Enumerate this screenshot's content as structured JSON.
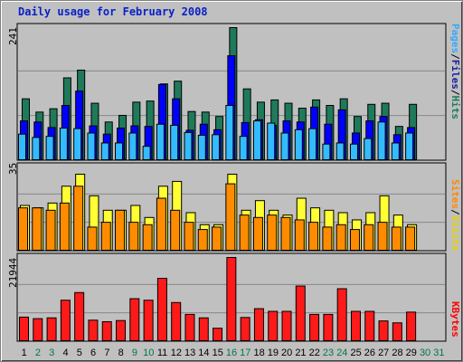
{
  "title": "Daily usage for February 2008",
  "panels": {
    "top": {
      "max_label": "241",
      "legend": [
        {
          "text": "Pages",
          "color": "#33aaff"
        },
        {
          "text": "Files",
          "color": "#1a1aa0"
        },
        {
          "text": "Hits",
          "color": "#1f7a5a"
        }
      ]
    },
    "mid": {
      "max_label": "35",
      "legend": [
        {
          "text": "Sites",
          "color": "#ff8800"
        },
        {
          "text": "Visits",
          "color": "#e8d000"
        }
      ]
    },
    "bot": {
      "max_label": "21944",
      "legend": [
        {
          "text": "KBytes",
          "color": "#ff0000"
        }
      ]
    }
  },
  "colors": {
    "hits": "#1f7a5a",
    "files": "#0000ff",
    "pages": "#33bbff",
    "visits": "#ffff33",
    "sites": "#ff8c00",
    "kbytes": "#ff1a1a",
    "weekday": "#000000",
    "weekend": "#007744"
  },
  "chart_data": {
    "type": "bar",
    "x": [
      "1",
      "2",
      "3",
      "4",
      "5",
      "6",
      "7",
      "8",
      "9",
      "10",
      "11",
      "12",
      "13",
      "14",
      "15",
      "16",
      "17",
      "18",
      "19",
      "20",
      "21",
      "22",
      "23",
      "24",
      "25",
      "26",
      "27",
      "28",
      "29",
      "30",
      "31"
    ],
    "weekend_days": [
      "2",
      "3",
      "9",
      "10",
      "16",
      "17",
      "23",
      "24",
      "30",
      "31"
    ],
    "ylim_top": [
      0,
      241
    ],
    "ylim_mid": [
      0,
      35
    ],
    "ylim_bot": [
      0,
      21944
    ],
    "series": [
      {
        "name": "Hits",
        "panel": "top",
        "values": [
          112,
          88,
          94,
          150,
          164,
          104,
          70,
          82,
          106,
          108,
          139,
          144,
          89,
          88,
          80,
          241,
          130,
          106,
          110,
          104,
          95,
          110,
          100,
          112,
          80,
          102,
          104,
          62,
          102,
          null,
          null
        ]
      },
      {
        "name": "Files",
        "panel": "top",
        "values": [
          72,
          70,
          60,
          100,
          126,
          63,
          48,
          59,
          63,
          62,
          138,
          112,
          55,
          66,
          56,
          190,
          69,
          74,
          64,
          72,
          70,
          97,
          66,
          92,
          50,
          72,
          80,
          47,
          60,
          null,
          null
        ]
      },
      {
        "name": "Pages",
        "panel": "top",
        "values": [
          48,
          42,
          44,
          59,
          58,
          50,
          32,
          32,
          50,
          26,
          66,
          64,
          51,
          46,
          47,
          100,
          44,
          72,
          68,
          50,
          56,
          58,
          30,
          32,
          30,
          40,
          70,
          32,
          50,
          null,
          null
        ]
      },
      {
        "name": "Visits",
        "panel": "mid",
        "values": [
          19,
          18,
          20,
          27,
          32,
          23,
          17,
          17,
          19,
          14,
          27,
          29,
          16,
          11,
          11,
          32,
          17,
          21,
          17,
          15,
          22,
          18,
          17,
          16,
          13,
          16,
          23,
          15,
          11,
          null,
          null
        ]
      },
      {
        "name": "Sites",
        "panel": "mid",
        "values": [
          18,
          18,
          17,
          20,
          27,
          10,
          12,
          17,
          12,
          11,
          22,
          17,
          12,
          9,
          10,
          28,
          15,
          14,
          15,
          14,
          13,
          12,
          10,
          11,
          9,
          11,
          12,
          10,
          10,
          null,
          null
        ]
      },
      {
        "name": "KBytes",
        "panel": "bot",
        "values": [
          6400,
          6000,
          6200,
          10800,
          12800,
          5600,
          5200,
          5500,
          11200,
          10800,
          16500,
          10200,
          7100,
          6200,
          3500,
          21944,
          6300,
          8600,
          7900,
          7900,
          14500,
          7100,
          7100,
          13800,
          7900,
          7900,
          5400,
          4900,
          7700,
          null,
          null
        ]
      }
    ]
  }
}
